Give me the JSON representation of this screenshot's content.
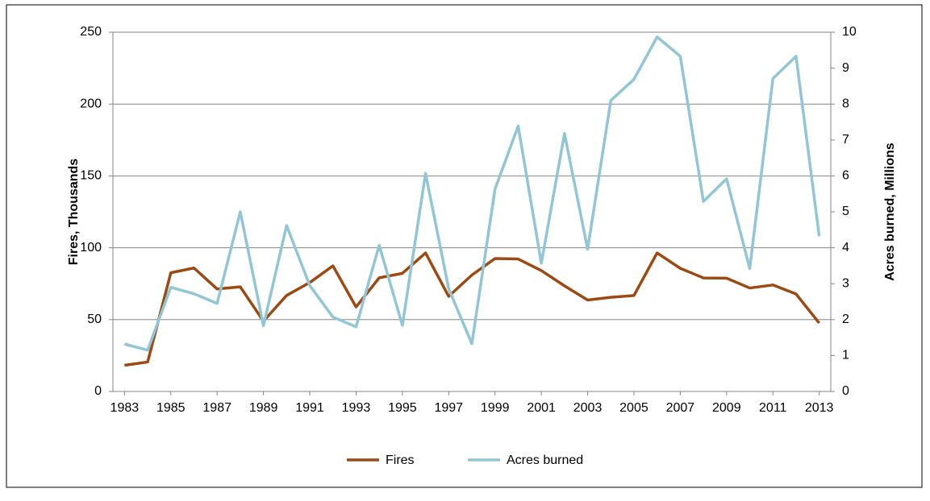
{
  "chart_data": {
    "type": "line",
    "x": [
      1983,
      1984,
      1985,
      1986,
      1987,
      1988,
      1989,
      1990,
      1991,
      1992,
      1993,
      1994,
      1995,
      1996,
      1997,
      1998,
      1999,
      2000,
      2001,
      2002,
      2003,
      2004,
      2005,
      2006,
      2007,
      2008,
      2009,
      2010,
      2011,
      2012,
      2013
    ],
    "xlim": [
      1982.5,
      2013.5
    ],
    "xticks": [
      1983,
      1985,
      1987,
      1989,
      1991,
      1993,
      1995,
      1997,
      1999,
      2001,
      2003,
      2005,
      2007,
      2009,
      2011,
      2013
    ],
    "y_label": "Fires, Thousands",
    "y2_label": "Acres burned, Millions",
    "ylim": [
      0,
      250
    ],
    "yticks": [
      0,
      50,
      100,
      150,
      200,
      250
    ],
    "y2lim": [
      0,
      10
    ],
    "y2ticks": [
      0,
      1,
      2,
      3,
      4,
      5,
      6,
      7,
      8,
      9,
      10
    ],
    "grid": true,
    "legend": "bottom",
    "series": [
      {
        "name": "Fires",
        "color": "#9c4a12",
        "values": [
          18.2,
          20.5,
          82.6,
          85.9,
          71.3,
          72.8,
          48.9,
          66.8,
          75.8,
          87.4,
          58.8,
          79.1,
          82.2,
          96.4,
          66.2,
          81.0,
          92.5,
          92.2,
          84.1,
          73.5,
          63.6,
          65.5,
          66.8,
          96.4,
          85.7,
          79.0,
          78.8,
          72.0,
          74.1,
          67.8,
          47.6
        ]
      },
      {
        "name": "Acres burned",
        "color": "#92c5d6",
        "axis": "y2",
        "values": [
          1.32,
          1.15,
          2.9,
          2.72,
          2.45,
          5.0,
          1.83,
          4.62,
          2.95,
          2.07,
          1.8,
          4.07,
          1.84,
          6.07,
          2.86,
          1.33,
          5.63,
          7.39,
          3.57,
          7.18,
          3.96,
          8.1,
          8.69,
          9.87,
          9.33,
          5.29,
          5.92,
          3.42,
          8.71,
          9.33,
          4.32
        ]
      }
    ]
  }
}
